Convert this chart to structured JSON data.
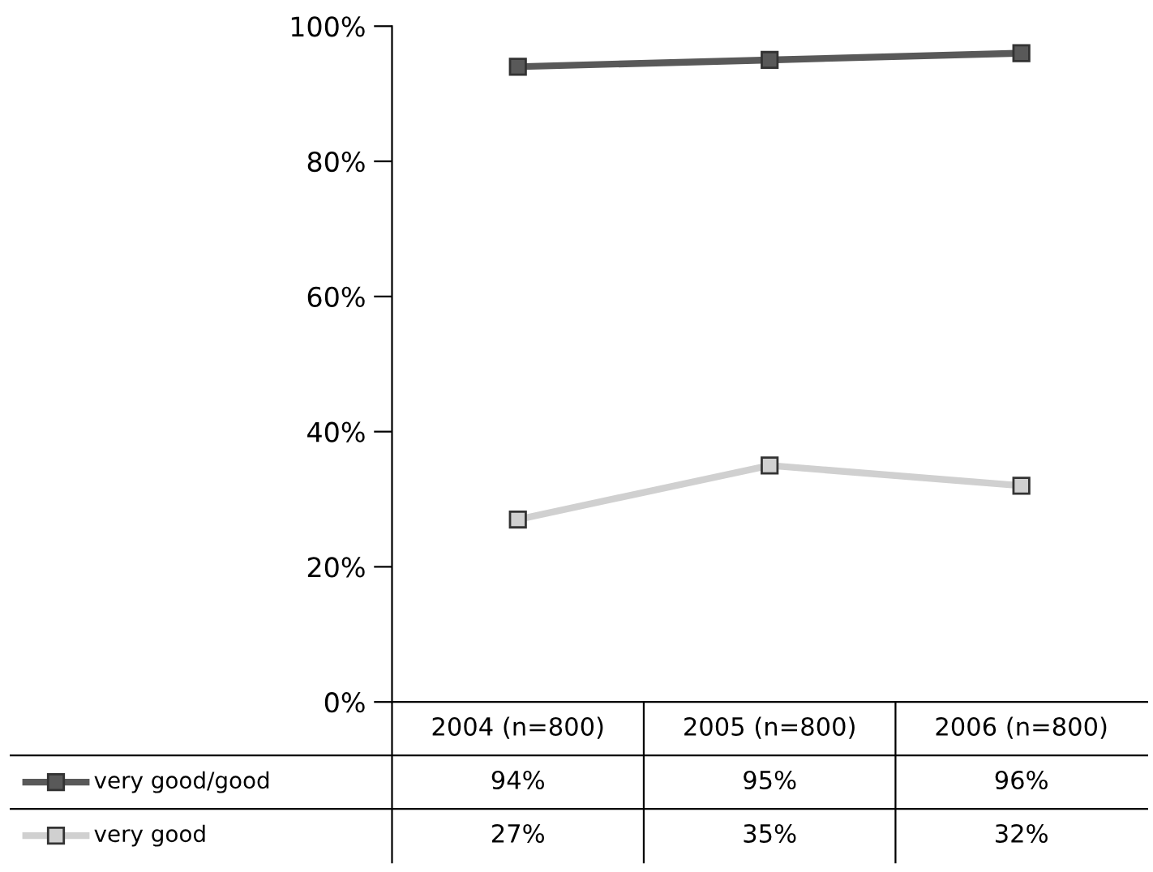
{
  "chart_data": {
    "type": "line",
    "categories": [
      "2004 (n=800)",
      "2005 (n=800)",
      "2006 (n=800)"
    ],
    "series": [
      {
        "name": "very good/good",
        "color": "#595959",
        "values": [
          94,
          95,
          96
        ],
        "value_labels": [
          "94%",
          "95%",
          "96%"
        ]
      },
      {
        "name": "very good",
        "color": "#d0d0d0",
        "values": [
          27,
          35,
          32
        ],
        "value_labels": [
          "27%",
          "35%",
          "32%"
        ]
      }
    ],
    "ylim": [
      0,
      100
    ],
    "yticks": [
      {
        "value": 0,
        "label": "0%"
      },
      {
        "value": 20,
        "label": "20%"
      },
      {
        "value": 40,
        "label": "40%"
      },
      {
        "value": 60,
        "label": "60%"
      },
      {
        "value": 80,
        "label": "80%"
      },
      {
        "value": 100,
        "label": "100%"
      }
    ],
    "marker": "square",
    "line_style": "solid",
    "grid": false,
    "legend": "bottom left"
  }
}
